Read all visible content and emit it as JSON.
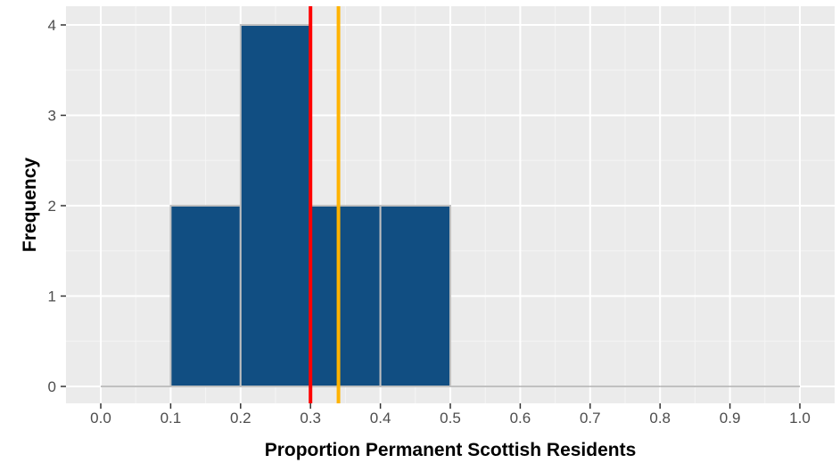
{
  "chart_data": {
    "type": "bar",
    "subtype": "histogram",
    "xlabel": "Proportion Permanent Scottish Residents",
    "ylabel": "Frequency",
    "xlim": [
      0.0,
      1.0
    ],
    "ylim": [
      0,
      4
    ],
    "x_ticks": [
      "0.0",
      "0.1",
      "0.2",
      "0.3",
      "0.4",
      "0.5",
      "0.6",
      "0.7",
      "0.8",
      "0.9",
      "1.0"
    ],
    "y_ticks": [
      "0",
      "1",
      "2",
      "3",
      "4"
    ],
    "bins": [
      {
        "start": 0.0,
        "end": 0.1,
        "count": 0
      },
      {
        "start": 0.1,
        "end": 0.2,
        "count": 2
      },
      {
        "start": 0.2,
        "end": 0.3,
        "count": 4
      },
      {
        "start": 0.3,
        "end": 0.4,
        "count": 2
      },
      {
        "start": 0.4,
        "end": 0.5,
        "count": 2
      },
      {
        "start": 0.5,
        "end": 0.6,
        "count": 0
      },
      {
        "start": 0.6,
        "end": 0.7,
        "count": 0
      },
      {
        "start": 0.7,
        "end": 0.8,
        "count": 0
      },
      {
        "start": 0.8,
        "end": 0.9,
        "count": 0
      },
      {
        "start": 0.9,
        "end": 1.0,
        "count": 0
      }
    ],
    "reference_lines": [
      {
        "x": 0.3,
        "color": "#ff0000"
      },
      {
        "x": 0.34,
        "color": "#ffb300"
      }
    ],
    "grid": true,
    "legend": "none"
  },
  "colors": {
    "bar_fill": "#114e82",
    "bar_edge": "#c0c0c0",
    "panel_background": "#ebebeb",
    "grid_major": "#ffffff",
    "grid_minor": "#f5f5f5"
  }
}
